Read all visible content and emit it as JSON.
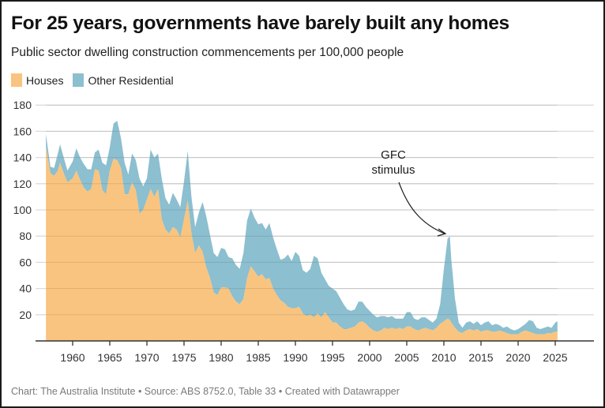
{
  "header": {
    "title": "For 25 years, governments have barely built any homes",
    "subtitle": "Public sector dwelling construction commencements per 100,000 people"
  },
  "legend": [
    {
      "label": "Houses",
      "color": "#f9c47f"
    },
    {
      "label": "Other Residential",
      "color": "#8cbfcf"
    }
  ],
  "footer": {
    "text": "Chart: The Australia Institute  • Source: ABS 8752.0, Table 33 • Created with Datawrapper"
  },
  "chart_data": {
    "type": "area",
    "stacked": true,
    "title": "For 25 years, governments have barely built any homes",
    "subtitle": "Public sector dwelling construction commencements per 100,000 people",
    "xlabel": "",
    "ylabel": "",
    "xlim": [
      1955,
      2030
    ],
    "ylim": [
      0,
      180
    ],
    "x_ticks": [
      1960,
      1965,
      1970,
      1975,
      1980,
      1985,
      1990,
      1995,
      2000,
      2005,
      2010,
      2015,
      2020,
      2025
    ],
    "y_ticks": [
      20,
      40,
      60,
      80,
      100,
      120,
      140,
      160,
      180
    ],
    "grid": true,
    "legend_position": "top-left",
    "annotations": [
      {
        "text_lines": [
          "GFC",
          "stimulus"
        ],
        "x": 2008.5,
        "y": 130,
        "arrow_to": {
          "x": 2010.6,
          "y": 80
        }
      }
    ],
    "x": [
      1956.4,
      1957,
      1957.5,
      1958,
      1958.3,
      1958.8,
      1959.3,
      1960,
      1960.5,
      1961,
      1961.5,
      1962,
      1962.5,
      1963,
      1963.5,
      1964,
      1964.5,
      1965,
      1965.5,
      1966,
      1966.5,
      1967,
      1967.5,
      1968,
      1968.5,
      1969,
      1969.5,
      1970,
      1970.5,
      1971,
      1971.5,
      1972,
      1972.5,
      1973,
      1973.5,
      1974,
      1974.5,
      1975,
      1975.5,
      1976,
      1976.5,
      1977,
      1977.5,
      1978,
      1978.5,
      1979,
      1979.5,
      1980,
      1980.5,
      1981,
      1981.5,
      1982,
      1982.5,
      1983,
      1983.5,
      1984,
      1984.5,
      1985,
      1985.5,
      1986,
      1986.5,
      1987,
      1987.5,
      1988,
      1988.5,
      1989,
      1989.5,
      1990,
      1990.5,
      1991,
      1991.5,
      1992,
      1992.5,
      1993,
      1993.5,
      1994,
      1994.5,
      1995,
      1995.5,
      1996,
      1996.5,
      1997,
      1997.5,
      1998,
      1998.5,
      1999,
      1999.5,
      2000,
      2000.5,
      2001,
      2001.5,
      2002,
      2002.5,
      2003,
      2003.5,
      2004,
      2004.5,
      2005,
      2005.5,
      2006,
      2006.5,
      2007,
      2007.5,
      2008,
      2008.5,
      2009,
      2009.5,
      2010,
      2010.5,
      2010.8,
      2011,
      2011.5,
      2012,
      2012.5,
      2013,
      2013.5,
      2014,
      2014.5,
      2015,
      2015.5,
      2016,
      2016.5,
      2017,
      2017.5,
      2018,
      2018.5,
      2019,
      2019.5,
      2020,
      2020.5,
      2021,
      2021.5,
      2022,
      2022.5,
      2023,
      2023.5,
      2024,
      2024.5,
      2025,
      2025.3
    ],
    "series": [
      {
        "name": "Houses",
        "color": "#f9c47f",
        "values": [
          148,
          128,
          126,
          130,
          136,
          128,
          121,
          124,
          130,
          123,
          117,
          114,
          116,
          131,
          130,
          115,
          112,
          130,
          139,
          138,
          132,
          112,
          112,
          121,
          115,
          97,
          100,
          108,
          116,
          110,
          116,
          93,
          85,
          82,
          87,
          85,
          79,
          93,
          107,
          82,
          67,
          73,
          68,
          56,
          48,
          37,
          35,
          41,
          41,
          40,
          34,
          30,
          28,
          32,
          48,
          57,
          53,
          49,
          51,
          47,
          48,
          40,
          35,
          31,
          29,
          26,
          25,
          25,
          26,
          21,
          19,
          20,
          18,
          21,
          18,
          22,
          18,
          14,
          14,
          11,
          9,
          9,
          10,
          11,
          14,
          15,
          13,
          10,
          8,
          7,
          8,
          10,
          9,
          10,
          9,
          10,
          9,
          11,
          11,
          9,
          8,
          9,
          10,
          9,
          8,
          10,
          13,
          15,
          17,
          16,
          14,
          10,
          7,
          6,
          8,
          9,
          8,
          9,
          7,
          8,
          8,
          7,
          7,
          8,
          7,
          6,
          5,
          5,
          5,
          7,
          8,
          7,
          6,
          5,
          5,
          5,
          6,
          6,
          7,
          7
        ]
      },
      {
        "name": "Other Residential",
        "color": "#8cbfcf",
        "values": [
          10,
          5,
          6,
          13,
          14,
          12,
          9,
          13,
          17,
          17,
          18,
          17,
          15,
          13,
          16,
          21,
          22,
          18,
          27,
          30,
          23,
          24,
          15,
          22,
          23,
          27,
          18,
          16,
          30,
          30,
          27,
          31,
          24,
          22,
          26,
          23,
          23,
          29,
          38,
          28,
          20,
          25,
          38,
          39,
          33,
          30,
          29,
          30,
          29,
          24,
          29,
          28,
          27,
          35,
          44,
          44,
          41,
          40,
          39,
          38,
          42,
          39,
          35,
          31,
          34,
          40,
          36,
          43,
          39,
          33,
          33,
          35,
          47,
          42,
          34,
          25,
          24,
          26,
          24,
          22,
          19,
          15,
          13,
          13,
          16,
          15,
          13,
          13,
          12,
          11,
          11,
          9,
          9,
          9,
          8,
          7,
          8,
          11,
          11,
          8,
          8,
          9,
          8,
          7,
          6,
          7,
          15,
          40,
          61,
          64,
          48,
          22,
          7,
          4,
          6,
          6,
          5,
          6,
          5,
          6,
          7,
          5,
          6,
          4,
          3,
          5,
          4,
          3,
          4,
          4,
          5,
          9,
          9,
          5,
          4,
          5,
          5,
          4,
          7,
          8
        ]
      }
    ]
  }
}
